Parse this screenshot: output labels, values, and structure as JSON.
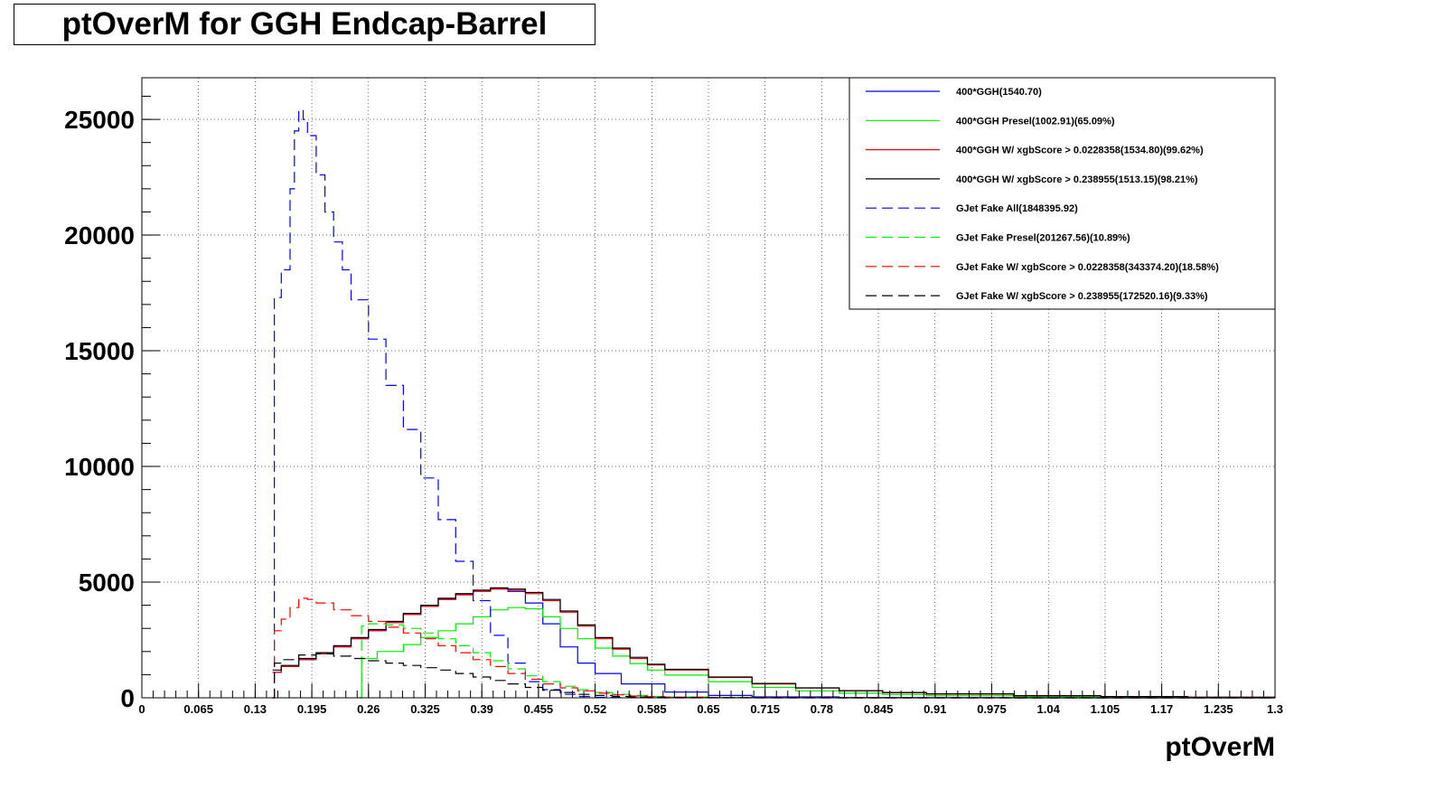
{
  "chart_data": {
    "type": "line",
    "title": "ptOverM for GGH Endcap-Barrel",
    "xlabel": "ptOverM",
    "ylabel": "",
    "xlim": [
      0,
      1.3
    ],
    "ylim": [
      0,
      26800
    ],
    "grid": true,
    "legend_position": "top-right",
    "x_ticks": [
      "0",
      "0.065",
      "0.13",
      "0.195",
      "0.26",
      "0.325",
      "0.39",
      "0.455",
      "0.52",
      "0.585",
      "0.65",
      "0.715",
      "0.78",
      "0.845",
      "0.91",
      "0.975",
      "1.04",
      "1.105",
      "1.17",
      "1.235",
      "1.3"
    ],
    "y_ticks": [
      "0",
      "5000",
      "10000",
      "15000",
      "20000",
      "25000"
    ],
    "series": [
      {
        "name": "400*GGH(1540.70)",
        "color": "#0000ff",
        "dash": "solid",
        "x": [
          0.15,
          0.16,
          0.18,
          0.2,
          0.22,
          0.24,
          0.26,
          0.28,
          0.3,
          0.32,
          0.34,
          0.36,
          0.38,
          0.4,
          0.42,
          0.44,
          0.46,
          0.48,
          0.5,
          0.52,
          0.55,
          0.6,
          0.65,
          0.7,
          0.8,
          0.9,
          1.0,
          1.3
        ],
        "y": [
          1100,
          1350,
          1650,
          1900,
          2200,
          2550,
          2900,
          3250,
          3600,
          3950,
          4250,
          4500,
          4650,
          4700,
          4600,
          4100,
          3200,
          2200,
          1500,
          1050,
          600,
          250,
          100,
          40,
          10,
          5,
          0,
          0
        ]
      },
      {
        "name": "400*GGH Presel(1002.91)(65.09%)",
        "color": "#00ee00",
        "dash": "solid",
        "x": [
          0.25,
          0.252,
          0.27,
          0.3,
          0.32,
          0.34,
          0.36,
          0.38,
          0.4,
          0.42,
          0.44,
          0.46,
          0.48,
          0.5,
          0.52,
          0.54,
          0.56,
          0.58,
          0.6,
          0.65,
          0.7,
          0.75,
          0.8,
          0.85,
          0.9,
          1.0,
          1.1,
          1.2,
          1.3
        ],
        "y": [
          0,
          1700,
          2000,
          2300,
          2600,
          2900,
          3200,
          3500,
          3800,
          3900,
          3850,
          3500,
          3000,
          2550,
          2150,
          1800,
          1480,
          1200,
          980,
          700,
          450,
          300,
          200,
          140,
          90,
          50,
          30,
          15,
          5
        ]
      },
      {
        "name": "400*GGH W/ xgbScore > 0.0228358(1534.80)(99.62%)",
        "color": "#ff0000",
        "dash": "solid",
        "x": [
          0.15,
          0.16,
          0.18,
          0.2,
          0.22,
          0.24,
          0.26,
          0.28,
          0.3,
          0.32,
          0.34,
          0.36,
          0.38,
          0.4,
          0.42,
          0.44,
          0.46,
          0.48,
          0.5,
          0.52,
          0.54,
          0.56,
          0.58,
          0.6,
          0.65,
          0.7,
          0.75,
          0.8,
          0.85,
          0.9,
          1.0,
          1.1,
          1.2,
          1.3
        ],
        "y": [
          1100,
          1350,
          1650,
          1900,
          2200,
          2550,
          2900,
          3250,
          3600,
          3950,
          4250,
          4450,
          4600,
          4700,
          4650,
          4500,
          4200,
          3700,
          3100,
          2550,
          2100,
          1700,
          1420,
          1200,
          880,
          600,
          420,
          300,
          220,
          160,
          90,
          50,
          25,
          10
        ]
      },
      {
        "name": "400*GGH W/ xgbScore > 0.238955(1513.15)(98.21%)",
        "color": "#000000",
        "dash": "solid",
        "x": [
          0.15,
          0.16,
          0.18,
          0.2,
          0.22,
          0.24,
          0.26,
          0.28,
          0.3,
          0.32,
          0.34,
          0.36,
          0.38,
          0.4,
          0.42,
          0.44,
          0.46,
          0.48,
          0.5,
          0.52,
          0.54,
          0.56,
          0.58,
          0.6,
          0.65,
          0.7,
          0.75,
          0.8,
          0.85,
          0.9,
          1.0,
          1.1,
          1.2,
          1.3
        ],
        "y": [
          1200,
          1400,
          1700,
          1950,
          2250,
          2600,
          2950,
          3300,
          3650,
          4000,
          4300,
          4500,
          4650,
          4750,
          4700,
          4550,
          4250,
          3750,
          3150,
          2600,
          2150,
          1750,
          1450,
          1230,
          900,
          620,
          430,
          310,
          230,
          170,
          95,
          55,
          28,
          12
        ]
      },
      {
        "name": "GJet Fake All(1848395.92)",
        "color": "#0000ff",
        "dash": "dashed",
        "x": [
          0.15,
          0.152,
          0.16,
          0.17,
          0.175,
          0.18,
          0.185,
          0.19,
          0.2,
          0.21,
          0.22,
          0.23,
          0.24,
          0.26,
          0.28,
          0.3,
          0.32,
          0.34,
          0.36,
          0.38,
          0.4,
          0.42,
          0.44,
          0.46,
          0.48,
          0.5,
          0.52,
          0.54,
          0.56,
          0.58,
          0.6,
          0.65,
          0.7,
          0.8,
          1.0,
          1.3
        ],
        "y": [
          0,
          17300,
          18500,
          22000,
          24500,
          25400,
          25000,
          24300,
          22600,
          21000,
          19700,
          18500,
          17200,
          15500,
          13500,
          11600,
          9500,
          7700,
          5900,
          4200,
          2700,
          1500,
          700,
          350,
          150,
          60,
          20,
          10,
          5,
          0,
          0,
          0,
          0,
          0,
          0,
          0
        ]
      },
      {
        "name": "GJet Fake Presel(201267.56)(10.89%)",
        "color": "#00ee00",
        "dash": "dashed",
        "x": [
          0.25,
          0.252,
          0.26,
          0.28,
          0.3,
          0.32,
          0.34,
          0.36,
          0.38,
          0.4,
          0.42,
          0.44,
          0.46,
          0.48,
          0.5,
          0.52,
          0.54,
          0.56,
          0.58,
          0.6,
          0.65,
          0.7,
          0.8,
          0.9,
          1.0,
          1.3
        ],
        "y": [
          0,
          3100,
          3200,
          3150,
          3000,
          2800,
          2550,
          2250,
          1950,
          1600,
          1250,
          950,
          700,
          500,
          350,
          230,
          150,
          100,
          60,
          35,
          10,
          5,
          0,
          0,
          0,
          0
        ]
      },
      {
        "name": "GJet Fake W/ xgbScore > 0.0228358(343374.20)(18.58%)",
        "color": "#ff0000",
        "dash": "dashed",
        "x": [
          0.15,
          0.152,
          0.16,
          0.17,
          0.18,
          0.19,
          0.2,
          0.22,
          0.24,
          0.26,
          0.28,
          0.3,
          0.32,
          0.34,
          0.36,
          0.38,
          0.4,
          0.42,
          0.44,
          0.46,
          0.48,
          0.5,
          0.52,
          0.54,
          0.56,
          0.58,
          0.6,
          0.65,
          0.7,
          0.8,
          1.0,
          1.3
        ],
        "y": [
          0,
          2900,
          3400,
          3900,
          4300,
          4250,
          4100,
          3800,
          3550,
          3300,
          3050,
          2800,
          2550,
          2250,
          1950,
          1650,
          1350,
          1050,
          800,
          600,
          430,
          300,
          200,
          130,
          80,
          50,
          30,
          10,
          5,
          0,
          0,
          0
        ]
      },
      {
        "name": "GJet Fake W/ xgbScore > 0.238955(172520.16)(9.33%)",
        "color": "#000000",
        "dash": "dashed",
        "x": [
          0.15,
          0.152,
          0.16,
          0.18,
          0.2,
          0.22,
          0.24,
          0.26,
          0.28,
          0.3,
          0.32,
          0.34,
          0.36,
          0.38,
          0.4,
          0.42,
          0.44,
          0.46,
          0.48,
          0.5,
          0.52,
          0.54,
          0.56,
          0.58,
          0.6,
          0.65,
          0.7,
          0.8,
          1.0,
          1.3
        ],
        "y": [
          0,
          1500,
          1650,
          1850,
          1900,
          1800,
          1700,
          1600,
          1500,
          1400,
          1300,
          1200,
          1050,
          900,
          750,
          600,
          450,
          330,
          230,
          150,
          100,
          60,
          35,
          20,
          10,
          5,
          0,
          0,
          0,
          0
        ]
      }
    ]
  }
}
